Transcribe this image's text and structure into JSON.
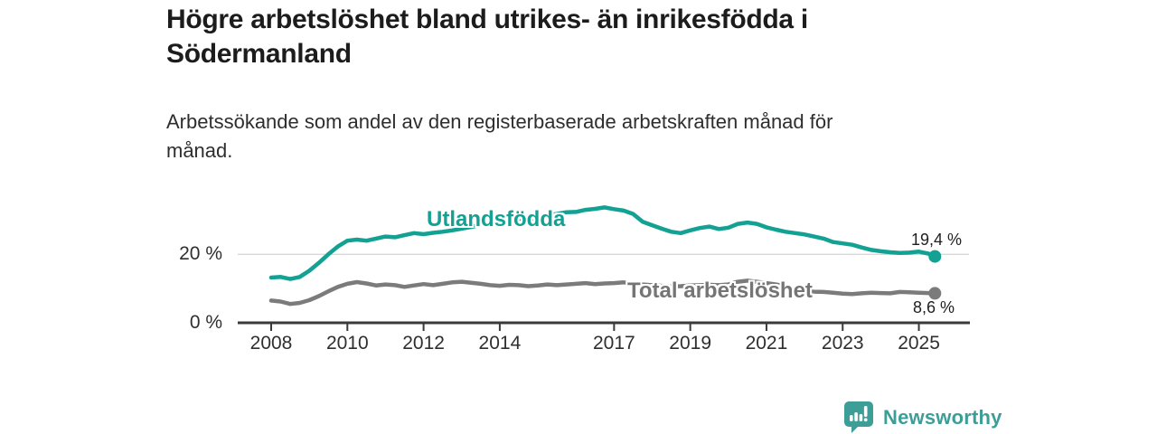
{
  "header": {
    "title_lines": [
      "Högre arbetslöshet bland utrikes- än inrikesfödda i",
      "Södermanland"
    ],
    "subtitle_lines": [
      "Arbetssökande som andel av den registerbaserade arbetskraften månad för",
      "månad."
    ]
  },
  "chart_data": {
    "type": "line",
    "title": "Högre arbetslöshet bland utrikes- än inrikesfödda i Södermanland",
    "subtitle": "Arbetssökande som andel av den registerbaserade arbetskraften månad för månad.",
    "unit": "%",
    "grid": "horizontal line at 20 % only",
    "legend_position": "inline labels on lines",
    "ylim": [
      0,
      36
    ],
    "y_tick_values": [
      0,
      20
    ],
    "y_tick_labels": [
      "0 %",
      "20 %"
    ],
    "x_ticks": [
      2008,
      2010,
      2012,
      2014,
      2017,
      2019,
      2021,
      2023,
      2025
    ],
    "x": [
      2008,
      2008.25,
      2008.5,
      2008.75,
      2009,
      2009.25,
      2009.5,
      2009.75,
      2010,
      2010.25,
      2010.5,
      2010.75,
      2011,
      2011.25,
      2011.5,
      2011.75,
      2012,
      2012.25,
      2012.5,
      2012.75,
      2013,
      2013.25,
      2013.5,
      2013.75,
      2014,
      2014.25,
      2014.5,
      2014.75,
      2015,
      2015.25,
      2015.5,
      2015.75,
      2016,
      2016.25,
      2016.5,
      2016.75,
      2017,
      2017.25,
      2017.5,
      2017.75,
      2018,
      2018.25,
      2018.5,
      2018.75,
      2019,
      2019.25,
      2019.5,
      2019.75,
      2020,
      2020.25,
      2020.5,
      2020.75,
      2021,
      2021.25,
      2021.5,
      2021.75,
      2022,
      2022.25,
      2022.5,
      2022.75,
      2023,
      2023.25,
      2023.5,
      2023.75,
      2024,
      2024.25,
      2024.5,
      2024.75,
      2025,
      2025.25,
      2025.42
    ],
    "series": [
      {
        "name": "Utlandsfödda",
        "color": "#12a192",
        "end_label": "19,4 %",
        "end_value": 19.4,
        "values": [
          13.2,
          13.4,
          12.8,
          13.4,
          15.2,
          17.5,
          20.0,
          22.3,
          24.0,
          24.3,
          24.0,
          24.6,
          25.2,
          25.0,
          25.6,
          26.2,
          25.9,
          26.3,
          26.6,
          27.0,
          27.5,
          28.0,
          28.6,
          29.0,
          29.5,
          30.0,
          30.4,
          30.2,
          30.8,
          31.3,
          31.8,
          32.3,
          32.4,
          33.0,
          33.3,
          33.7,
          33.2,
          32.8,
          31.8,
          29.5,
          28.5,
          27.5,
          26.6,
          26.2,
          27.0,
          27.7,
          28.1,
          27.4,
          27.8,
          28.9,
          29.3,
          28.9,
          27.9,
          27.2,
          26.6,
          26.2,
          25.8,
          25.2,
          24.6,
          23.6,
          23.2,
          22.8,
          22.0,
          21.3,
          20.9,
          20.6,
          20.4,
          20.5,
          20.8,
          20.2,
          19.4
        ]
      },
      {
        "name": "Total arbetslöshet",
        "color": "#7b7b7b",
        "end_label": "8,6 %",
        "end_value": 8.6,
        "values": [
          6.5,
          6.2,
          5.5,
          5.8,
          6.6,
          7.8,
          9.2,
          10.5,
          11.4,
          11.9,
          11.5,
          10.9,
          11.2,
          11.0,
          10.5,
          10.9,
          11.3,
          11.0,
          11.4,
          11.8,
          12.0,
          11.7,
          11.4,
          11.0,
          10.8,
          11.1,
          11.0,
          10.7,
          10.9,
          11.2,
          11.0,
          11.2,
          11.4,
          11.6,
          11.3,
          11.5,
          11.6,
          11.8,
          11.5,
          11.2,
          11.0,
          10.8,
          10.6,
          10.7,
          10.9,
          11.0,
          11.1,
          11.0,
          11.2,
          12.0,
          12.3,
          12.0,
          11.6,
          11.2,
          10.7,
          10.0,
          9.4,
          9.1,
          9.0,
          8.8,
          8.5,
          8.4,
          8.6,
          8.8,
          8.7,
          8.6,
          9.0,
          8.9,
          8.8,
          8.7,
          8.6
        ]
      }
    ]
  },
  "colors": {
    "accent_teal": "#12a192",
    "line_gray": "#7b7b7b",
    "axis": "#3a3a3a",
    "gridline": "#d8d8d8",
    "title_text": "#1c1c1c",
    "body_text": "#2e2e2e"
  },
  "footer": {
    "brand": "Newsworthy",
    "brand_color": "#3d9e97",
    "logo_icon": "newsworthy-bar-chart-badge"
  }
}
